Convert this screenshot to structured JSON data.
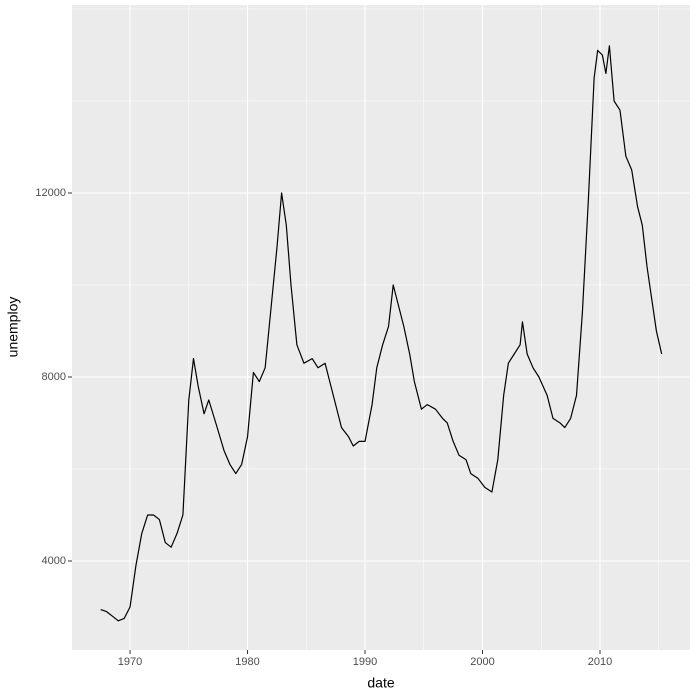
{
  "chart_data": {
    "type": "line",
    "x_label": "date",
    "y_label": "unemploy",
    "x": [
      1967.5,
      1968.0,
      1968.5,
      1969.0,
      1969.5,
      1970.0,
      1970.5,
      1971.0,
      1971.5,
      1972.0,
      1972.5,
      1973.0,
      1973.5,
      1974.0,
      1974.5,
      1975.0,
      1975.4,
      1975.8,
      1976.3,
      1976.7,
      1977.3,
      1978.0,
      1978.5,
      1979.0,
      1979.5,
      1980.0,
      1980.5,
      1981.0,
      1981.5,
      1982.0,
      1982.5,
      1982.9,
      1983.3,
      1983.7,
      1984.2,
      1984.8,
      1985.5,
      1986.0,
      1986.6,
      1987.0,
      1987.5,
      1988.0,
      1988.6,
      1989.0,
      1989.5,
      1990.0,
      1990.6,
      1991.0,
      1991.5,
      1992.0,
      1992.4,
      1992.8,
      1993.3,
      1993.8,
      1994.2,
      1994.8,
      1995.3,
      1996.0,
      1996.6,
      1997.0,
      1997.5,
      1998.0,
      1998.6,
      1999.0,
      1999.6,
      2000.2,
      2000.8,
      2001.3,
      2001.8,
      2002.2,
      2002.7,
      2003.2,
      2003.4,
      2003.8,
      2004.3,
      2004.8,
      2005.5,
      2006.0,
      2006.6,
      2007.0,
      2007.5,
      2008.0,
      2008.5,
      2009.0,
      2009.5,
      2009.8,
      2010.2,
      2010.5,
      2010.8,
      2011.2,
      2011.7,
      2012.2,
      2012.7,
      2013.2,
      2013.6,
      2014.0,
      2014.4,
      2014.8,
      2015.25
    ],
    "values": [
      2944,
      2900,
      2800,
      2700,
      2750,
      3000,
      3900,
      4600,
      5000,
      5000,
      4900,
      4400,
      4300,
      4600,
      5000,
      7500,
      8400,
      7800,
      7200,
      7500,
      7000,
      6400,
      6100,
      5900,
      6100,
      6700,
      8100,
      7900,
      8200,
      9500,
      10800,
      12000,
      11300,
      10000,
      8700,
      8300,
      8400,
      8200,
      8300,
      7900,
      7400,
      6900,
      6700,
      6500,
      6600,
      6600,
      7400,
      8200,
      8700,
      9100,
      10000,
      9600,
      9100,
      8500,
      7900,
      7300,
      7400,
      7300,
      7100,
      7000,
      6600,
      6300,
      6200,
      5900,
      5800,
      5600,
      5500,
      6200,
      7600,
      8300,
      8500,
      8700,
      9200,
      8500,
      8200,
      8000,
      7600,
      7100,
      7000,
      6900,
      7100,
      7600,
      9400,
      11800,
      14500,
      15100,
      15000,
      14600,
      15200,
      14000,
      13800,
      12800,
      12500,
      11700,
      11300,
      10400,
      9700,
      9000,
      8500
    ],
    "color": "#000000",
    "xlim": [
      1965.06,
      2017.66
    ],
    "xticks": [
      1970,
      1980,
      1990,
      2000,
      2010
    ],
    "xminor": [
      1965,
      1975,
      1985,
      1995,
      2005,
      2015
    ],
    "ylim": [
      2065,
      16087
    ],
    "yticks": [
      4000,
      8000,
      12000
    ],
    "yminor": [
      2000,
      6000,
      10000,
      14000,
      16000
    ],
    "grid": true
  }
}
